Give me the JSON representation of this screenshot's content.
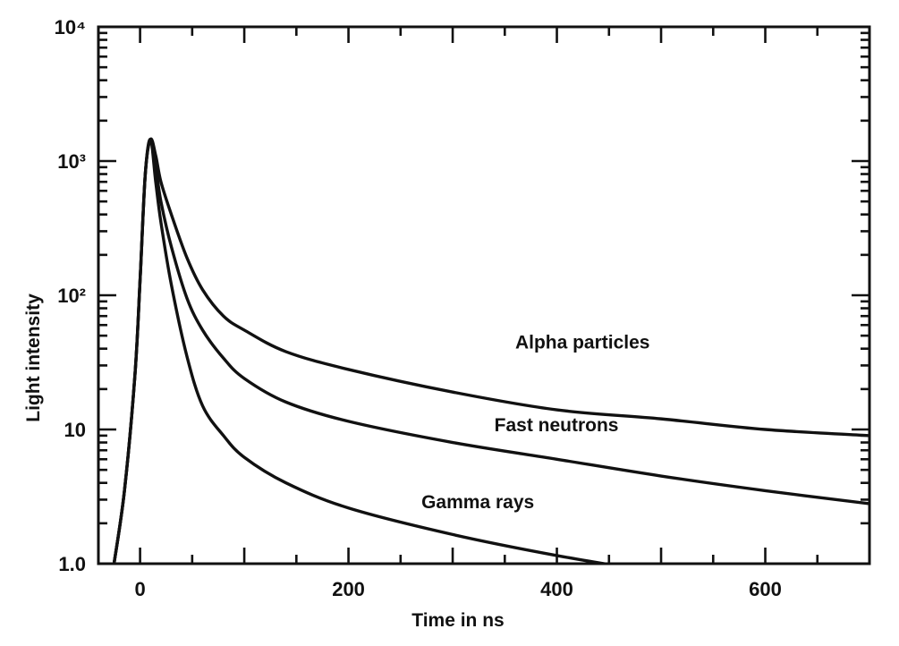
{
  "chart_data": {
    "type": "line",
    "xlabel": "Time in ns",
    "ylabel": "Light intensity",
    "x_scale": "linear",
    "y_scale": "log",
    "xlim": [
      -40,
      700
    ],
    "ylim": [
      1,
      10000
    ],
    "x_ticks": [
      {
        "value": 0,
        "label": "0"
      },
      {
        "value": 200,
        "label": "200"
      },
      {
        "value": 400,
        "label": "400"
      },
      {
        "value": 600,
        "label": "600"
      }
    ],
    "y_ticks": [
      {
        "value": 1,
        "label": "1.0"
      },
      {
        "value": 10,
        "label": "10"
      },
      {
        "value": 100,
        "label": "10²"
      },
      {
        "value": 1000,
        "label": "10³"
      },
      {
        "value": 10000,
        "label": "10⁴"
      }
    ],
    "grid": false,
    "legend": "none",
    "series": [
      {
        "name": "Alpha particles",
        "label_at": [
          360,
          40
        ],
        "points": [
          [
            -25,
            1
          ],
          [
            -15,
            3.5
          ],
          [
            -5,
            25
          ],
          [
            0,
            130
          ],
          [
            5,
            800
          ],
          [
            10,
            1450
          ],
          [
            15,
            1100
          ],
          [
            20,
            700
          ],
          [
            30,
            400
          ],
          [
            45,
            190
          ],
          [
            60,
            110
          ],
          [
            80,
            70
          ],
          [
            100,
            55
          ],
          [
            140,
            38
          ],
          [
            200,
            28
          ],
          [
            300,
            19
          ],
          [
            400,
            14
          ],
          [
            500,
            12
          ],
          [
            600,
            10
          ],
          [
            700,
            9
          ]
        ]
      },
      {
        "name": "Fast neutrons",
        "label_at": [
          340,
          9.7
        ],
        "points": [
          [
            -25,
            1
          ],
          [
            -15,
            3.5
          ],
          [
            -5,
            25
          ],
          [
            0,
            130
          ],
          [
            5,
            800
          ],
          [
            10,
            1450
          ],
          [
            15,
            900
          ],
          [
            20,
            500
          ],
          [
            30,
            230
          ],
          [
            45,
            95
          ],
          [
            60,
            55
          ],
          [
            80,
            34
          ],
          [
            100,
            24
          ],
          [
            140,
            16
          ],
          [
            200,
            11.5
          ],
          [
            300,
            8
          ],
          [
            400,
            6
          ],
          [
            500,
            4.5
          ],
          [
            600,
            3.5
          ],
          [
            700,
            2.8
          ]
        ]
      },
      {
        "name": "Gamma rays",
        "label_at": [
          270,
          2.6
        ],
        "points": [
          [
            -25,
            1
          ],
          [
            -15,
            3.5
          ],
          [
            -5,
            25
          ],
          [
            0,
            130
          ],
          [
            5,
            800
          ],
          [
            10,
            1450
          ],
          [
            15,
            700
          ],
          [
            20,
            350
          ],
          [
            30,
            120
          ],
          [
            45,
            35
          ],
          [
            60,
            15
          ],
          [
            80,
            9
          ],
          [
            100,
            6.2
          ],
          [
            140,
            4
          ],
          [
            200,
            2.6
          ],
          [
            300,
            1.65
          ],
          [
            400,
            1.15
          ],
          [
            500,
            0.85
          ]
        ]
      }
    ]
  }
}
